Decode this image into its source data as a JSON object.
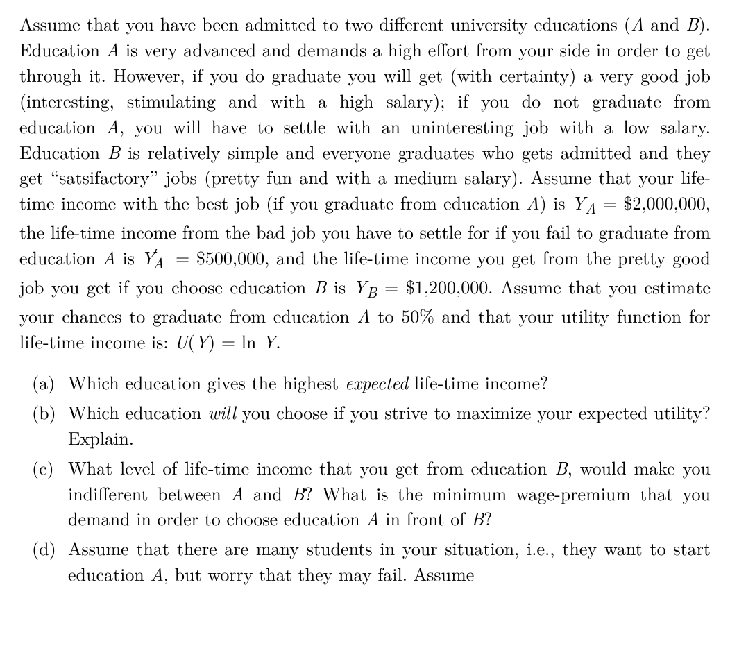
{
  "paragraph": {
    "l1": "Assume that you have been admitted to two different university educations (",
    "A1": "A",
    "l2": " and ",
    "B1": "B",
    "l3": "). Education ",
    "A2": "A",
    "l4": " is very advanced and demands a high effort from your side in order to get through it. However, if you do graduate you will get (with certainty) a very good job (interesting, stimulating and with a high salary); if you do not graduate from education ",
    "A3": "A",
    "l5": ", you will have to settle with an uninteresting job with a low salary. Education ",
    "B2": "B",
    "l6": " is relatively simple and everyone graduates who gets admitted and they get “satsifactory” jobs (pretty fun and with a medium salary). Assume that your life-time income with the best job (if you graduate from education ",
    "A4": "A",
    "l7": ") is ",
    "YA": "Y",
    "YAsub": "A",
    "eq1": " = $2,000,000, the life-time income from the bad job you have to settle for if you fail to graduate from education ",
    "A5": "A",
    "l8": " is ",
    "YAp": "Y",
    "YApprime": "′",
    "YApsub": "A",
    "eq2": " = $500,000, and the life-time income you get from the pretty good job you get if you choose education ",
    "B3": "B",
    "l9": " is ",
    "YB": "Y",
    "YBsub": "B",
    "eq3": " = $1,200,000. Assume that you estimate your chances to graduate from education ",
    "A6": "A",
    "l10": " to 50% and that your utility function for life-time income is: ",
    "U": "U",
    "l11": "(",
    "Yarg": "Y",
    "l12": ") = ln ",
    "Y2": "Y",
    "l13": "."
  },
  "items": {
    "a": {
      "label": "(a)",
      "t1": "Which education gives the highest ",
      "em": "expected",
      "t2": " life-time income?"
    },
    "b": {
      "label": "(b)",
      "t1": "Which education ",
      "em": "will",
      "t2": " you choose if you strive to maximize your expected utility? Explain."
    },
    "c": {
      "label": "(c)",
      "t1": "What level of life-time income that you get from education ",
      "B": "B",
      "t2": ", would make you indifferent between ",
      "A": "A",
      "t3": " and ",
      "B2": "B",
      "t4": "? What is the minimum wage-premium that you demand in order to choose education ",
      "A2": "A",
      "t5": " in front of ",
      "B3": "B",
      "t6": "?"
    },
    "d": {
      "label": "(d)",
      "t1": "Assume that there are many students in your situation, i.e., they want to start education ",
      "A": "A",
      "t2": ", but worry that they may fail. Assume"
    }
  }
}
